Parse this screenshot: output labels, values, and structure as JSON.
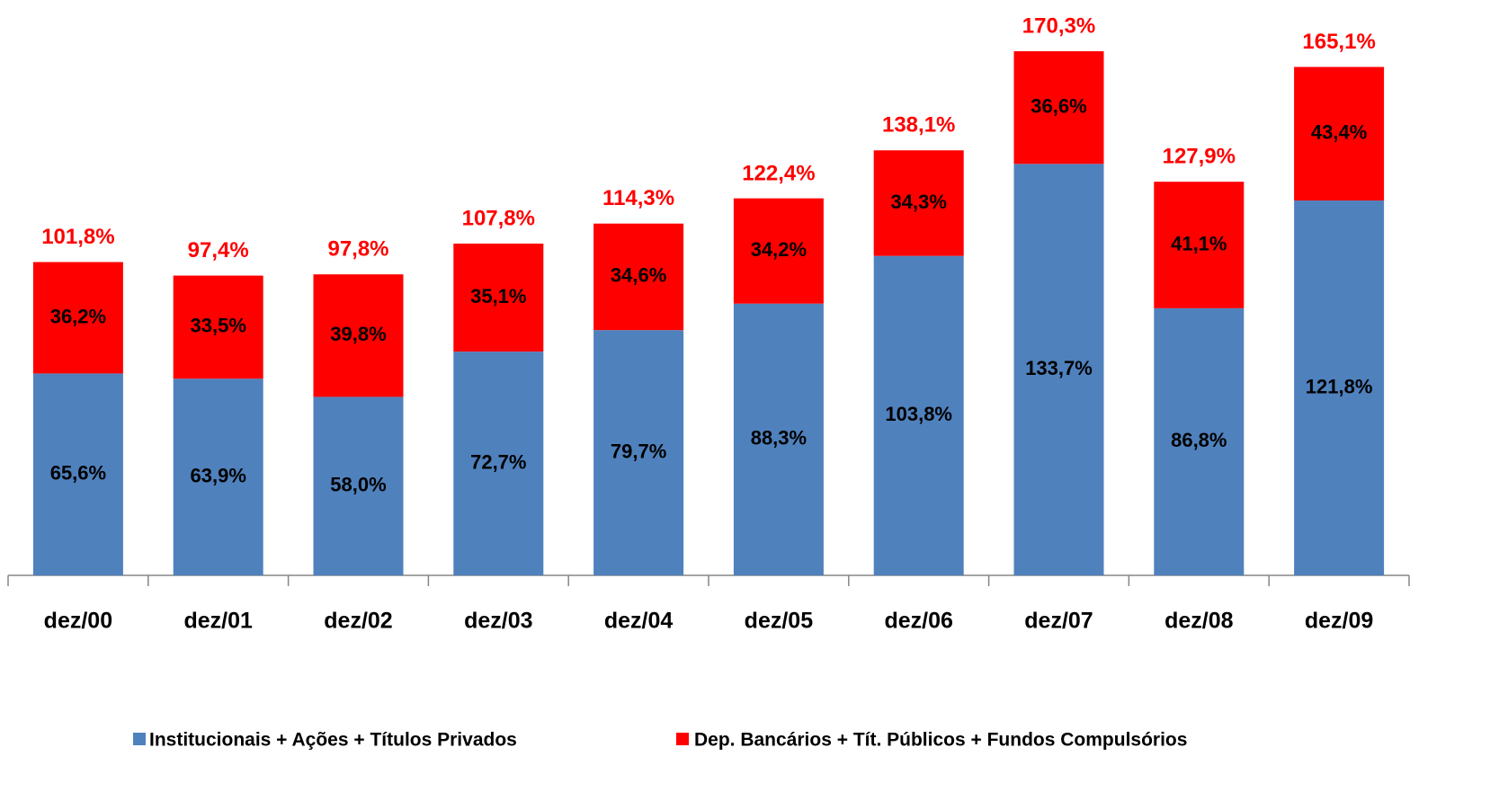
{
  "chart_data": {
    "type": "stacked-bar",
    "categories": [
      "dez/00",
      "dez/01",
      "dez/02",
      "dez/03",
      "dez/04",
      "dez/05",
      "dez/06",
      "dez/07",
      "dez/08",
      "dez/09"
    ],
    "series": [
      {
        "name": "Institucionais + Ações + Títulos Privados",
        "color": "#4f81bd",
        "values": [
          65.6,
          63.9,
          58.0,
          72.7,
          79.7,
          88.3,
          103.8,
          133.7,
          86.8,
          121.8
        ],
        "value_labels": [
          "65,6%",
          "63,9%",
          "58,0%",
          "72,7%",
          "79,7%",
          "88,3%",
          "103,8%",
          "133,7%",
          "86,8%",
          "121,8%"
        ]
      },
      {
        "name": "Dep. Bancários + Tít. Públicos + Fundos Compulsórios",
        "color": "#ff0000",
        "values": [
          36.2,
          33.5,
          39.8,
          35.1,
          34.6,
          34.2,
          34.3,
          36.6,
          41.1,
          43.4
        ],
        "value_labels": [
          "36,2%",
          "33,5%",
          "39,8%",
          "35,1%",
          "34,6%",
          "34,2%",
          "34,3%",
          "36,6%",
          "41,1%",
          "43,4%"
        ]
      }
    ],
    "totals": {
      "values": [
        101.8,
        97.4,
        97.8,
        107.8,
        114.3,
        122.4,
        138.1,
        170.3,
        127.9,
        165.1
      ],
      "value_labels": [
        "101,8%",
        "97,4%",
        "97,8%",
        "107,8%",
        "114,3%",
        "122,4%",
        "138,1%",
        "170,3%",
        "127,9%",
        "165,1%"
      ]
    }
  }
}
